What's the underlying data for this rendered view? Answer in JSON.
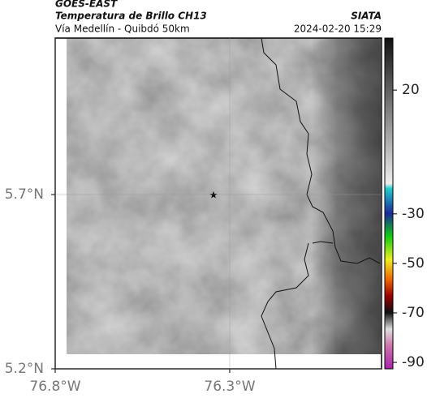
{
  "header": {
    "title": "GOES-EAST",
    "subtitle": "Temperatura de Brillo CH13",
    "route": "Vía Medellín - Quibdó 50km",
    "source": "SIATA",
    "timestamp": "2024-02-20 15:29"
  },
  "map": {
    "xlim": [
      -76.8,
      -75.865
    ],
    "ylim": [
      5.2,
      6.149
    ],
    "xticks": [
      {
        "value": -76.8,
        "label": "76.8°W"
      },
      {
        "value": -76.3,
        "label": "76.3°W"
      }
    ],
    "yticks": [
      {
        "value": 5.2,
        "label": "5.2°N"
      },
      {
        "value": 5.7,
        "label": "5.7°N"
      }
    ]
  },
  "colorbar": {
    "lim": [
      -92.6,
      41
    ],
    "ticks": [
      20,
      -30,
      -50,
      -70,
      -90
    ]
  }
}
